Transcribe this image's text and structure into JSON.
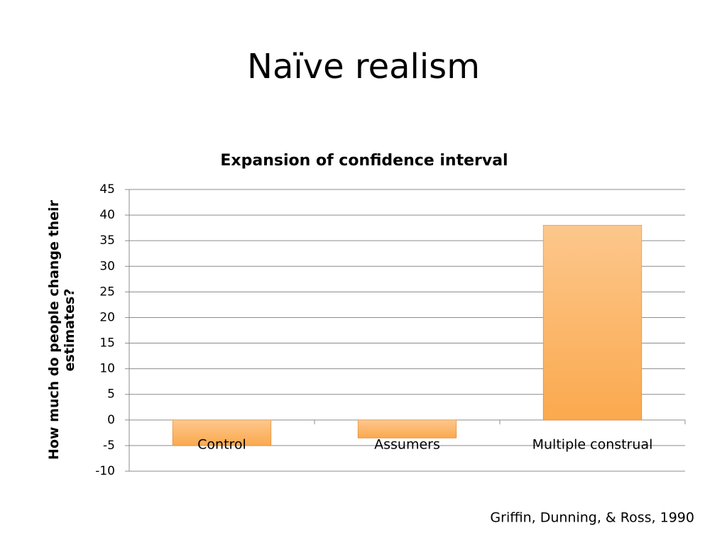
{
  "slide_title": "Naïve realism",
  "citation": "Griffin, Dunning, & Ross, 1990",
  "chart_data": {
    "type": "bar",
    "title": "Expansion of confidence interval",
    "y_label": "How much do people change their estimates?",
    "categories": [
      "Control",
      "Assumers",
      "Multiple construal"
    ],
    "values": [
      -5,
      -3.5,
      38
    ],
    "color": "#fba94e",
    "ylim": [
      -10,
      45
    ],
    "yticks": [
      -10,
      -5,
      0,
      5,
      10,
      15,
      20,
      25,
      30,
      35,
      40,
      45
    ],
    "grid": true
  }
}
